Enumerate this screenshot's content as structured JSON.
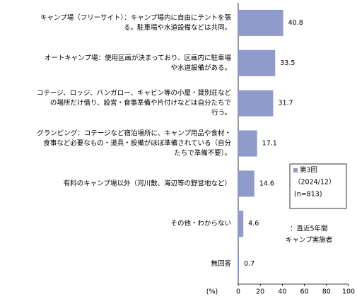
{
  "chart_data": {
    "type": "barh",
    "categories": [
      [
        "キャンプ場（フリーサイト）：キャンプ場内に自由にテントを張",
        "る。駐車場や水道設備などは共同。"
      ],
      [
        "オートキャンプ場：使用区画が決まっており、区画内に駐車場",
        "や水道設備がある。"
      ],
      [
        "コテージ、ロッジ、バンガロー、キャビン等の小屋・貸別荘など",
        "の場所だけ借り、設営・食事準備や片付けなどは自分たちで",
        "行う。"
      ],
      [
        "グランピング：コテージなど宿泊場所に、キャンプ用品や食材・",
        "食事など必要なもの・道具・設備がほぼ準備されている（自分",
        "たちで準備不要）。"
      ],
      [
        "有料のキャンプ場以外（河川敷、海辺等の野営地など）"
      ],
      [
        "その他・わからない"
      ],
      [
        "無回答"
      ]
    ],
    "series": [
      {
        "name": [
          "第3回",
          "（2024/12）",
          "(n=813)"
        ],
        "color": "#8e9bcb",
        "values": [
          40.8,
          33.5,
          31.7,
          17.1,
          14.6,
          4.6,
          0.7
        ]
      }
    ],
    "annotation": [
      "：直近5年間",
      "キャンプ実施者"
    ],
    "x_label": "(%)",
    "xlim": [
      0,
      100
    ],
    "xticks": [
      0,
      20,
      40,
      60,
      80,
      100
    ],
    "grid": false
  }
}
